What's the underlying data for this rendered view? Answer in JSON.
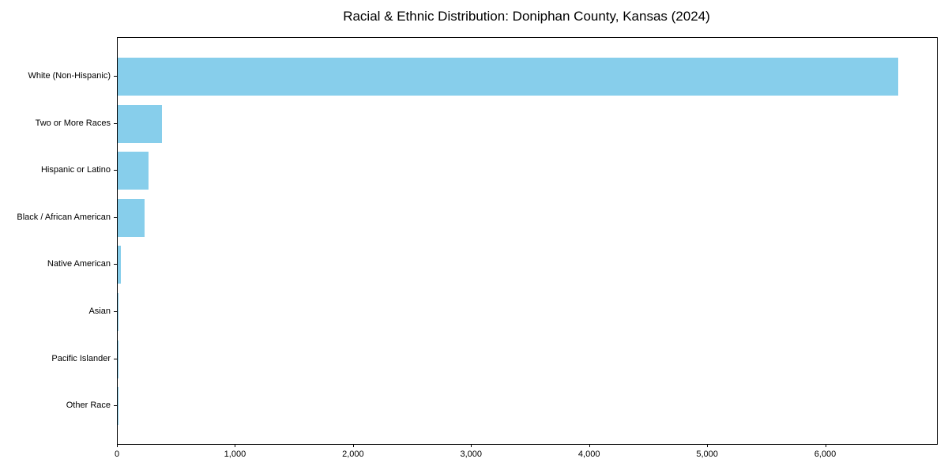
{
  "chart_data": {
    "type": "bar",
    "orientation": "horizontal",
    "title": "Racial & Ethnic Distribution: Doniphan County, Kansas (2024)",
    "categories": [
      "White (Non-Hispanic)",
      "Two or More Races",
      "Hispanic or Latino",
      "Black / African American",
      "Native American",
      "Asian",
      "Pacific Islander",
      "Other Race"
    ],
    "values": [
      6610,
      378,
      261,
      226,
      28,
      8,
      5,
      2
    ],
    "xlabel": "",
    "ylabel": "",
    "xlim": [
      0,
      6940
    ],
    "x_ticks": [
      0,
      1000,
      2000,
      3000,
      4000,
      5000,
      6000
    ],
    "x_tick_labels": [
      "0",
      "1,000",
      "2,000",
      "3,000",
      "4,000",
      "5,000",
      "6,000"
    ],
    "bar_color": "#87ceeb",
    "text_color": "#000000",
    "grid": false,
    "legend": "none"
  }
}
